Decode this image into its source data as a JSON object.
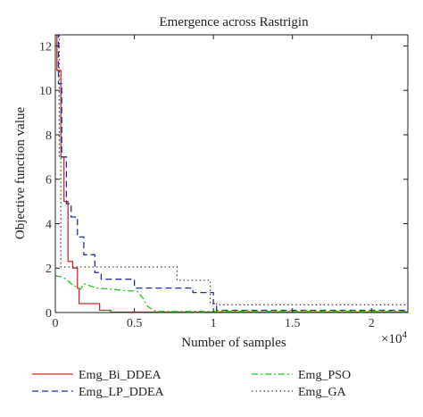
{
  "chart_data": {
    "type": "line",
    "title": "Emergence across Rastrigin",
    "xlabel": "Number of samples",
    "ylabel": "Objective function value",
    "x_exponent_label": "×10",
    "x_exponent_power": "4",
    "xlim": [
      0,
      22300
    ],
    "ylim": [
      0,
      12.5
    ],
    "x_ticks": [
      0,
      5000,
      10000,
      15000,
      20000
    ],
    "x_tick_labels": [
      "0",
      "0.5",
      "1",
      "1.5",
      "2"
    ],
    "y_ticks": [
      0,
      2,
      4,
      6,
      8,
      10,
      12
    ],
    "y_tick_labels": [
      "0",
      "2",
      "4",
      "6",
      "8",
      "10",
      "12"
    ],
    "grid": false,
    "legend_position": "bottom",
    "series": [
      {
        "name": "Emg_Bi_DDEA",
        "color": "#d62728",
        "style": "solid",
        "x": [
          0,
          100,
          100,
          350,
          350,
          550,
          550,
          800,
          800,
          1100,
          1100,
          1400,
          1400,
          1500,
          1500,
          2800,
          2800,
          3500,
          3500,
          22300
        ],
        "y": [
          12.5,
          12.5,
          10.9,
          10.9,
          7.0,
          7.0,
          5.0,
          5.0,
          2.3,
          2.3,
          2.0,
          2.0,
          1.1,
          1.1,
          0.4,
          0.4,
          0.1,
          0.1,
          0.02,
          0.02
        ]
      },
      {
        "name": "Emg_LP_DDEA",
        "color": "#1f2f9f",
        "style": "dashed",
        "x": [
          0,
          200,
          200,
          400,
          400,
          700,
          700,
          1000,
          1000,
          1400,
          1400,
          1800,
          1800,
          2500,
          2500,
          2900,
          2900,
          5000,
          5000,
          8700,
          8700,
          10000,
          10000,
          10200,
          10200,
          22300
        ],
        "y": [
          12.5,
          12.5,
          10.3,
          10.3,
          7.0,
          7.0,
          4.9,
          4.9,
          4.3,
          4.3,
          3.4,
          3.4,
          2.6,
          2.6,
          1.8,
          1.8,
          1.5,
          1.5,
          1.1,
          1.1,
          0.9,
          0.9,
          0.4,
          0.4,
          0.1,
          0.1
        ]
      },
      {
        "name": "Emg_PSO",
        "color": "#22c422",
        "style": "dashdot",
        "x": [
          0,
          400,
          700,
          1000,
          1200,
          1600,
          1800,
          2200,
          2600,
          3600,
          4200,
          5200,
          5300,
          5600,
          5800,
          6200,
          6500,
          22300
        ],
        "y": [
          1.65,
          1.6,
          1.5,
          1.3,
          1.2,
          1.05,
          1.3,
          1.2,
          1.1,
          1.05,
          1.0,
          0.95,
          0.85,
          0.6,
          0.3,
          0.1,
          0.05,
          0.05
        ]
      },
      {
        "name": "Emg_GA",
        "color": "#444444",
        "style": "dotted",
        "x": [
          0,
          250,
          250,
          350,
          350,
          7700,
          7700,
          9800,
          9800,
          10200,
          10200,
          22300
        ],
        "y": [
          12.5,
          12.5,
          7.0,
          7.0,
          2.05,
          2.05,
          1.45,
          1.45,
          0.4,
          0.4,
          0.35,
          0.35
        ]
      }
    ]
  }
}
